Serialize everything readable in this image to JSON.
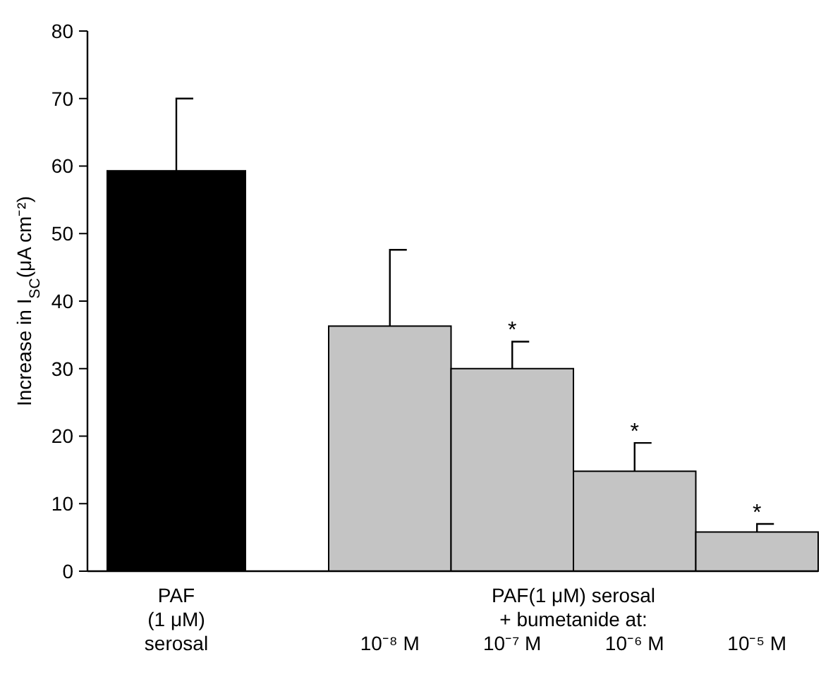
{
  "chart_data": {
    "type": "bar",
    "ylabel": "Increase in I$_{SC}$(μA cm⁻²)",
    "categories": [
      "PAF\n(1 μM)\nserosal",
      "10⁻⁸ M",
      "10⁻⁷ M",
      "10⁻⁶ M",
      "10⁻⁵ M"
    ],
    "values": [
      59.3,
      36.3,
      30,
      14.8,
      5.8
    ],
    "colors": [
      "#000000",
      "#c4c4c4",
      "#c4c4c4",
      "#c4c4c4",
      "#c4c4c4"
    ],
    "errors": [
      [
        59.3,
        70
      ],
      [
        36.3,
        47.6
      ],
      [
        30,
        34
      ],
      [
        14.8,
        19
      ],
      [
        5.8,
        7
      ]
    ],
    "ylim": [
      0,
      80
    ],
    "yticks": [
      0,
      10,
      20,
      30,
      40,
      50,
      60,
      70,
      80
    ],
    "grid": false,
    "annotations": [
      "PAF(1 μM) serosal\n+ bumetanide at:",
      {
        "text": "*",
        "x": "10⁻⁷ M",
        "y": 34
      },
      {
        "text": "*",
        "x": "10⁻⁶ M",
        "y": 19
      },
      {
        "text": "*",
        "x": "10⁻⁵ M",
        "y": 7
      }
    ]
  }
}
